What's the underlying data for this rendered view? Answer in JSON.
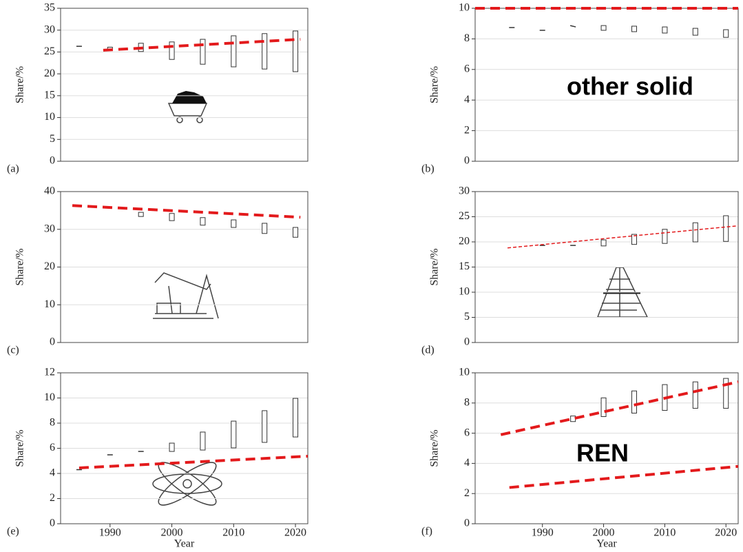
{
  "chart_data": [
    {
      "type": "range",
      "panel_label": "(a)",
      "ylabel": "Share/%",
      "xlim": [
        1982,
        2022
      ],
      "ylim": [
        0,
        35
      ],
      "yticks": [
        0,
        5,
        10,
        15,
        20,
        25,
        30,
        35
      ],
      "grid": true,
      "x": [
        1985,
        1990,
        1995,
        2000,
        2005,
        2010,
        2015,
        2020
      ],
      "low": [
        26.3,
        25.6,
        25.1,
        23.3,
        22.2,
        21.6,
        21.1,
        20.5
      ],
      "high": [
        26.3,
        26.1,
        27.0,
        27.3,
        27.9,
        28.7,
        29.2,
        29.8
      ],
      "trend_color": "#e31a1c",
      "trend_width": 4,
      "trend_lines": [
        {
          "x": [
            1988.9,
            2020.8
          ],
          "values": [
            25.4,
            27.9
          ]
        }
      ]
    },
    {
      "type": "range",
      "panel_label": "(b)",
      "ylabel": "Share/%",
      "annotation": "other solid",
      "xlim": [
        1979,
        2022
      ],
      "ylim": [
        0,
        10
      ],
      "yticks": [
        0,
        2,
        4,
        6,
        8,
        10
      ],
      "grid": true,
      "x": [
        1985,
        1990,
        1995,
        2000,
        2005,
        2010,
        2015,
        2020
      ],
      "low": [
        8.74,
        8.56,
        8.78,
        8.56,
        8.47,
        8.38,
        8.24,
        8.1
      ],
      "high": [
        8.74,
        8.56,
        8.87,
        8.87,
        8.83,
        8.78,
        8.69,
        8.6
      ],
      "trend_color": "#e31a1c",
      "trend_width": 4,
      "trend_lines": [
        {
          "x": [
            1979,
            2022
          ],
          "values": [
            10,
            10
          ]
        }
      ]
    },
    {
      "type": "range",
      "panel_label": "(c)",
      "ylabel": "Share/%",
      "xlim": [
        1982,
        2022
      ],
      "ylim": [
        0,
        40
      ],
      "yticks": [
        0,
        10,
        20,
        30,
        40
      ],
      "grid": true,
      "x": [
        1995,
        2000,
        2005,
        2010,
        2015,
        2020
      ],
      "low": [
        33.4,
        32.3,
        31.1,
        30.5,
        28.9,
        27.9
      ],
      "high": [
        34.5,
        34.2,
        33.1,
        32.5,
        31.6,
        30.5
      ],
      "trend_color": "#e31a1c",
      "trend_width": 4,
      "trend_lines": [
        {
          "x": [
            1983.9,
            2020.8
          ],
          "values": [
            36.3,
            33.2
          ]
        }
      ]
    },
    {
      "type": "range",
      "panel_label": "(d)",
      "ylabel": "Share/%",
      "xlim": [
        1979,
        2022
      ],
      "ylim": [
        0,
        30
      ],
      "yticks": [
        0,
        5,
        10,
        15,
        20,
        25,
        30
      ],
      "grid": true,
      "x": [
        1990,
        1995,
        2000,
        2005,
        2010,
        2015,
        2020
      ],
      "low": [
        19.3,
        19.3,
        19.2,
        19.5,
        19.7,
        20.0,
        20.1
      ],
      "high": [
        19.3,
        19.3,
        20.4,
        21.5,
        22.5,
        23.8,
        25.2
      ],
      "trend_color": "#e31a1c",
      "trend_width": 1.5,
      "trend_lines": [
        {
          "x": [
            1984.3,
            2022
          ],
          "values": [
            18.8,
            23.2
          ]
        }
      ]
    },
    {
      "type": "range",
      "panel_label": "(e)",
      "ylabel": "Share/%",
      "xlabel": "Year",
      "xlim": [
        1982,
        2022
      ],
      "ylim": [
        0,
        12
      ],
      "yticks": [
        0,
        2,
        4,
        6,
        8,
        10,
        12
      ],
      "xticks": [
        1990,
        2000,
        2010,
        2020
      ],
      "grid": true,
      "x": [
        1985,
        1990,
        1995,
        2000,
        2005,
        2010,
        2015,
        2020
      ],
      "low": [
        4.3,
        5.48,
        5.75,
        5.75,
        5.86,
        6.03,
        6.47,
        6.9
      ],
      "high": [
        4.3,
        5.48,
        5.75,
        6.41,
        7.29,
        8.16,
        8.99,
        9.97
      ],
      "trend_color": "#e31a1c",
      "trend_width": 4,
      "trend_lines": [
        {
          "x": [
            1985,
            2022
          ],
          "values": [
            4.44,
            5.37
          ]
        }
      ]
    },
    {
      "type": "range",
      "panel_label": "(f)",
      "ylabel": "Share/%",
      "xlabel": "Year",
      "annotation": "REN",
      "xlim": [
        1979,
        2022
      ],
      "ylim": [
        0,
        10
      ],
      "yticks": [
        0,
        2,
        4,
        6,
        8,
        10
      ],
      "xticks": [
        1990,
        2000,
        2010,
        2020
      ],
      "grid": true,
      "x": [
        1995,
        2000,
        2005,
        2010,
        2015,
        2020
      ],
      "low": [
        6.77,
        7.1,
        7.33,
        7.51,
        7.65,
        7.65
      ],
      "high": [
        7.14,
        8.34,
        8.8,
        9.22,
        9.4,
        9.63
      ],
      "trend_color": "#e31a1c",
      "trend_width": 4,
      "trend_lines": [
        {
          "x": [
            1983.2,
            2022
          ],
          "values": [
            5.9,
            9.4
          ]
        },
        {
          "x": [
            1984.6,
            2022
          ],
          "values": [
            2.4,
            3.8
          ]
        }
      ]
    }
  ]
}
